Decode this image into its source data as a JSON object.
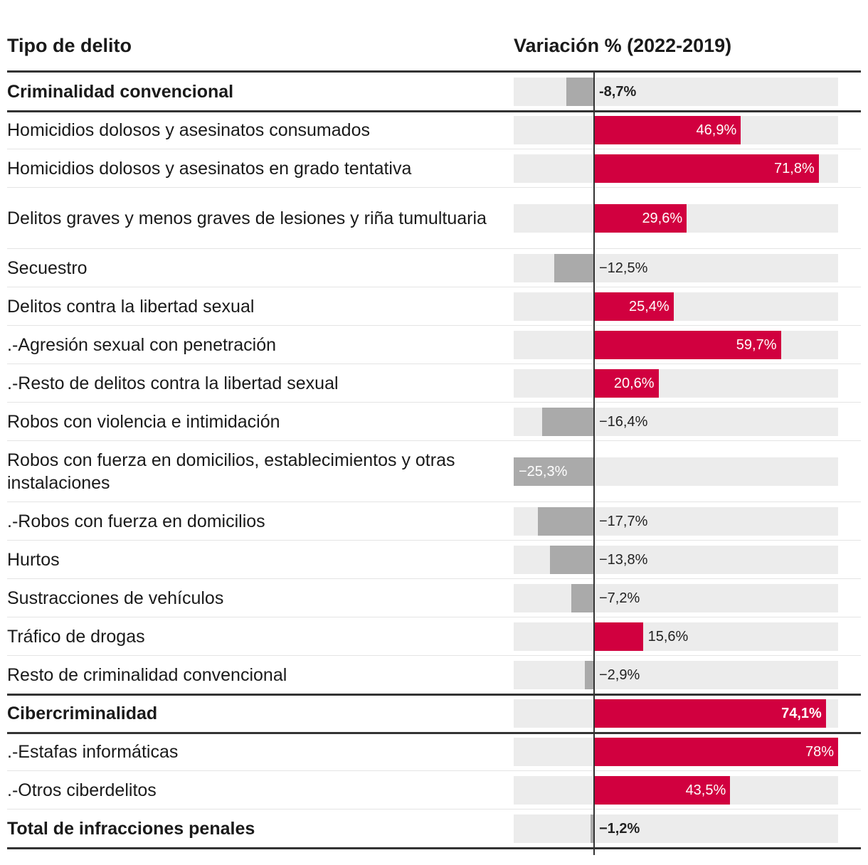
{
  "header": {
    "left": "Tipo de delito",
    "right": "Variación % (2022-2019)"
  },
  "colors": {
    "positive": "#d1003f",
    "negative": "#aaaaaa",
    "track": "#ececec"
  },
  "chart_data": {
    "type": "bar",
    "orientation": "horizontal",
    "xlim": [
      -25.3,
      78
    ],
    "categories": [
      "Criminalidad convencional",
      "Homicidios dolosos y asesinatos consumados",
      "Homicidios dolosos y asesinatos en grado tentativa",
      "Delitos graves y menos graves de lesiones y riña tumultuaria",
      "Secuestro",
      "Delitos contra la libertad sexual",
      ".-Agresión sexual con penetración",
      ".-Resto de delitos contra la libertad sexual",
      "Robos con violencia e intimidación",
      "Robos con fuerza en domicilios, establecimientos y otras instalaciones",
      ".-Robos con fuerza en domicilios",
      "Hurtos",
      "Sustracciones de vehículos",
      "Tráfico de drogas",
      "Resto de criminalidad convencional",
      "Cibercriminalidad",
      ".-Estafas informáticas",
      ".-Otros ciberdelitos",
      "Total de infracciones penales"
    ],
    "values": [
      -8.7,
      46.9,
      71.8,
      29.6,
      -12.5,
      25.4,
      59.7,
      20.6,
      -16.4,
      -25.3,
      -17.7,
      -13.8,
      -7.2,
      15.6,
      -2.9,
      74.1,
      78,
      43.5,
      -1.2
    ],
    "value_labels": [
      "-8,7%",
      "46,9%",
      "71,8%",
      "29,6%",
      "−12,5%",
      "25,4%",
      "59,7%",
      "20,6%",
      "−16,4%",
      "−25,3%",
      "−17,7%",
      "−13,8%",
      "−7,2%",
      "15,6%",
      "−2,9%",
      "74,1%",
      "78%",
      "43,5%",
      "−1,2%"
    ],
    "bold_rows": [
      0,
      15,
      18
    ]
  }
}
